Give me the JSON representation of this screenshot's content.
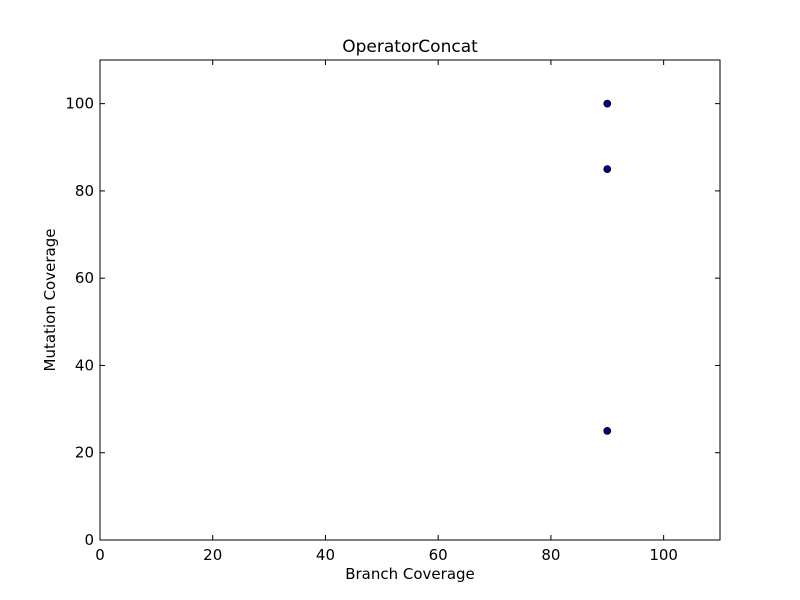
{
  "chart_data": {
    "type": "scatter",
    "title": "OperatorConcat",
    "xlabel": "Branch Coverage",
    "ylabel": "Mutation Coverage",
    "xlim": [
      0,
      110
    ],
    "ylim": [
      0,
      110
    ],
    "xticks": [
      0,
      20,
      40,
      60,
      80,
      100
    ],
    "yticks": [
      0,
      20,
      40,
      60,
      80,
      100
    ],
    "grid": false,
    "legend": "none",
    "marker_color": "#00008b",
    "marker_edge_color": "#000000",
    "series": [
      {
        "x": [
          90,
          90,
          90
        ],
        "y": [
          100,
          85,
          25
        ]
      }
    ]
  }
}
